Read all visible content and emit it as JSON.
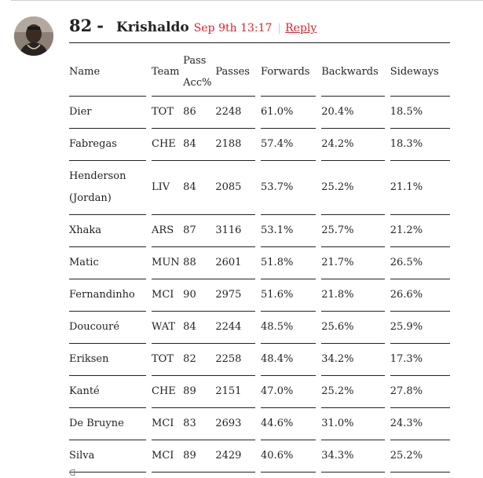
{
  "comment": {
    "number": "82",
    "dash": "-",
    "author": "Krishaldo",
    "timestamp": "Sep 9th 13:17",
    "separator": "|",
    "reply_label": "Reply"
  },
  "table": {
    "headers": {
      "name": "Name",
      "team": "Team",
      "pass_acc_line1": "Pass",
      "pass_acc_line2": "Acc%",
      "passes": "Passes",
      "forwards": "Forwards",
      "backwards": "Backwards",
      "sideways": "Sideways"
    },
    "rows": [
      {
        "name": "Dier",
        "team": "TOT",
        "pass_acc": "86",
        "passes": "2248",
        "forwards": "61.0%",
        "backwards": "20.4%",
        "sideways": "18.5%"
      },
      {
        "name": "Fabregas",
        "team": "CHE",
        "pass_acc": "84",
        "passes": "2188",
        "forwards": "57.4%",
        "backwards": "24.2%",
        "sideways": "18.3%"
      },
      {
        "name": "Henderson (Jordan)",
        "team": "LIV",
        "pass_acc": "84",
        "passes": "2085",
        "forwards": "53.7%",
        "backwards": "25.2%",
        "sideways": "21.1%"
      },
      {
        "name": "Xhaka",
        "team": "ARS",
        "pass_acc": "87",
        "passes": "3116",
        "forwards": "53.1%",
        "backwards": "25.7%",
        "sideways": "21.2%"
      },
      {
        "name": "Matic",
        "team": "MUN",
        "pass_acc": "88",
        "passes": "2601",
        "forwards": "51.8%",
        "backwards": "21.7%",
        "sideways": "26.5%"
      },
      {
        "name": "Fernandinho",
        "team": "MCI",
        "pass_acc": "90",
        "passes": "2975",
        "forwards": "51.6%",
        "backwards": "21.8%",
        "sideways": "26.6%"
      },
      {
        "name": "Doucouré",
        "team": "WAT",
        "pass_acc": "84",
        "passes": "2244",
        "forwards": "48.5%",
        "backwards": "25.6%",
        "sideways": "25.9%"
      },
      {
        "name": "Eriksen",
        "team": "TOT",
        "pass_acc": "82",
        "passes": "2258",
        "forwards": "48.4%",
        "backwards": "34.2%",
        "sideways": "17.3%"
      },
      {
        "name": "Kanté",
        "team": "CHE",
        "pass_acc": "89",
        "passes": "2151",
        "forwards": "47.0%",
        "backwards": "25.2%",
        "sideways": "27.8%"
      },
      {
        "name": "De Bruyne",
        "team": "MCI",
        "pass_acc": "83",
        "passes": "2693",
        "forwards": "44.6%",
        "backwards": "31.0%",
        "sideways": "24.3%"
      },
      {
        "name": "Silva",
        "team": "MCI",
        "pass_acc": "89",
        "passes": "2429",
        "forwards": "40.6%",
        "backwards": "34.3%",
        "sideways": "25.2%"
      }
    ]
  },
  "footer_glyph": "ᗡ",
  "colors": {
    "accent": "#d9232e",
    "text": "#222222",
    "rule": "#222222"
  }
}
